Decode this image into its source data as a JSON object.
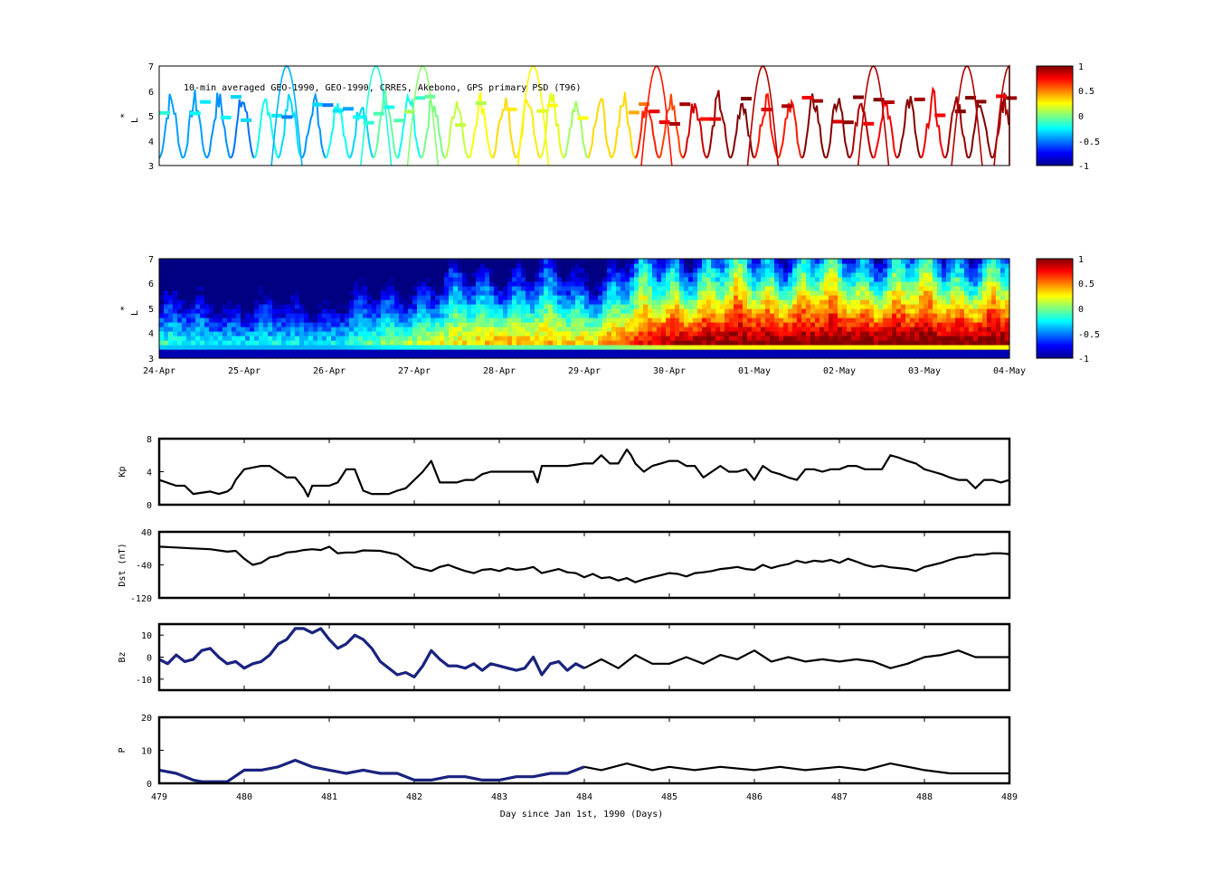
{
  "figure": {
    "top_title": "10-min averaged GEO-1990, GEO-1990, CRRES, Akebono, GPS  primary PSD (T96)",
    "panel1": {
      "ylabel": "L",
      "ylabel_sup": "*",
      "ylim": [
        3,
        7
      ],
      "yticks": [
        "3",
        "4",
        "5",
        "6",
        "7"
      ]
    },
    "panel2": {
      "ylabel": "L",
      "ylabel_sup": "*",
      "ylim": [
        3,
        7
      ],
      "yticks": [
        "3",
        "4",
        "5",
        "6",
        "7"
      ],
      "date_ticks": [
        "24-Apr",
        "25-Apr",
        "26-Apr",
        "27-Apr",
        "28-Apr",
        "29-Apr",
        "30-Apr",
        "01-May",
        "02-May",
        "03-May",
        "04-May"
      ]
    },
    "colorbar1": {
      "ticks": [
        "1",
        "0.5",
        "0",
        "-0.5",
        "-1"
      ],
      "range": [
        -1,
        1
      ]
    },
    "colorbar2": {
      "ticks": [
        "1",
        "0.5",
        "0",
        "-0.5",
        "-1"
      ],
      "range": [
        -1,
        1
      ]
    },
    "xlabel": "Day since Jan 1st, 1990 (Days)",
    "day_ticks": [
      "479",
      "480",
      "481",
      "482",
      "483",
      "484",
      "485",
      "486",
      "487",
      "488",
      "489"
    ]
  },
  "chart_data": [
    {
      "type": "scatter",
      "title": "10-min averaged GEO-1990, GEO-1990, CRRES, Akebono, GPS  primary PSD (T96)",
      "xlabel": "",
      "ylabel": "L*",
      "xlim": [
        479,
        489
      ],
      "ylim": [
        3,
        7
      ],
      "colormap": "jet",
      "color_range": [
        -1,
        1
      ],
      "description_series": [
        {
          "name": "orbit tracks (colored by normalized PSD)",
          "trend": [
            {
              "x": 479.0,
              "c": -0.3
            },
            {
              "x": 480.0,
              "c": -0.4
            },
            {
              "x": 481.0,
              "c": -0.4
            },
            {
              "x": 482.0,
              "c": 0.0
            },
            {
              "x": 483.0,
              "c": 0.3
            },
            {
              "x": 484.0,
              "c": 0.2
            },
            {
              "x": 485.0,
              "c": 0.8
            },
            {
              "x": 486.0,
              "c": 0.9
            },
            {
              "x": 487.0,
              "c": 0.9
            },
            {
              "x": 488.0,
              "c": 0.9
            },
            {
              "x": 489.0,
              "c": 0.9
            }
          ]
        }
      ]
    },
    {
      "type": "heatmap",
      "xlabel": "",
      "ylabel": "L*",
      "xlim": [
        479,
        489
      ],
      "ylim": [
        3,
        7
      ],
      "colormap": "jet",
      "color_range": [
        -1,
        1
      ],
      "x_tick_labels": [
        "24-Apr",
        "25-Apr",
        "26-Apr",
        "27-Apr",
        "28-Apr",
        "29-Apr",
        "30-Apr",
        "01-May",
        "02-May",
        "03-May",
        "04-May"
      ]
    },
    {
      "type": "line",
      "ylabel": "Kp",
      "xlim": [
        479,
        489
      ],
      "ylim": [
        0,
        8
      ],
      "yticks": [
        "0",
        "4",
        "8"
      ],
      "series": [
        {
          "color": "#000000",
          "x": [
            479.0,
            479.2,
            479.3,
            479.4,
            479.6,
            479.7,
            479.8,
            479.85,
            479.9,
            480.0,
            480.2,
            480.3,
            480.5,
            480.6,
            480.7,
            480.75,
            480.8,
            481.0,
            481.1,
            481.2,
            481.3,
            481.35,
            481.4,
            481.5,
            481.7,
            481.8,
            481.9,
            482.0,
            482.1,
            482.2,
            482.3,
            482.5,
            482.6,
            482.7,
            482.8,
            482.9,
            483.0,
            483.1,
            483.2,
            483.3,
            483.4,
            483.45,
            483.5,
            483.6,
            483.8,
            484.0,
            484.1,
            484.2,
            484.3,
            484.4,
            484.5,
            484.55,
            484.6,
            484.7,
            484.8,
            484.9,
            485.0,
            485.1,
            485.2,
            485.3,
            485.4,
            485.5,
            485.6,
            485.7,
            485.8,
            485.9,
            486.0,
            486.1,
            486.2,
            486.3,
            486.4,
            486.5,
            486.6,
            486.7,
            486.8,
            486.9,
            487.0,
            487.1,
            487.2,
            487.3,
            487.4,
            487.5,
            487.6,
            487.7,
            487.8,
            487.9,
            488.0,
            488.1,
            488.2,
            488.3,
            488.4,
            488.5,
            488.6,
            488.7,
            488.8,
            488.9,
            489.0
          ],
          "values": [
            3.0,
            2.3,
            2.3,
            1.3,
            1.6,
            1.3,
            1.6,
            2.0,
            3.0,
            4.3,
            4.7,
            4.7,
            3.3,
            3.3,
            2.0,
            1.0,
            2.3,
            2.3,
            2.7,
            4.3,
            4.3,
            3.0,
            1.7,
            1.3,
            1.3,
            1.7,
            2.0,
            3.0,
            4.0,
            5.3,
            2.7,
            2.7,
            3.0,
            3.0,
            3.7,
            4.0,
            4.0,
            4.0,
            4.0,
            4.0,
            4.0,
            2.7,
            4.7,
            4.7,
            4.7,
            5.0,
            5.0,
            6.0,
            5.0,
            5.0,
            6.7,
            6.0,
            5.0,
            4.0,
            4.7,
            5.0,
            5.3,
            5.3,
            4.7,
            4.7,
            3.3,
            4.0,
            4.7,
            4.0,
            4.0,
            4.3,
            3.0,
            4.7,
            4.0,
            3.7,
            3.3,
            3.0,
            4.3,
            4.3,
            4.0,
            4.3,
            4.3,
            4.7,
            4.7,
            4.3,
            4.3,
            4.3,
            6.0,
            5.7,
            5.3,
            5.0,
            4.3,
            4.0,
            3.7,
            3.3,
            3.0,
            3.0,
            2.0,
            3.0,
            3.0,
            2.7,
            3.0
          ]
        }
      ]
    },
    {
      "type": "line",
      "ylabel": "Dst (nT)",
      "xlim": [
        479,
        489
      ],
      "ylim": [
        -120,
        40
      ],
      "yticks": [
        "-120",
        "-40",
        "40"
      ],
      "series": [
        {
          "color": "#000000",
          "x": [
            479.0,
            479.2,
            479.4,
            479.6,
            479.8,
            479.9,
            480.0,
            480.1,
            480.2,
            480.3,
            480.4,
            480.5,
            480.6,
            480.7,
            480.8,
            480.9,
            481.0,
            481.1,
            481.2,
            481.3,
            481.4,
            481.6,
            481.8,
            481.9,
            482.0,
            482.1,
            482.2,
            482.3,
            482.4,
            482.5,
            482.6,
            482.7,
            482.8,
            482.9,
            483.0,
            483.1,
            483.2,
            483.3,
            483.4,
            483.5,
            483.6,
            483.7,
            483.8,
            483.9,
            484.0,
            484.1,
            484.2,
            484.3,
            484.4,
            484.5,
            484.6,
            484.7,
            484.8,
            484.9,
            485.0,
            485.1,
            485.2,
            485.3,
            485.4,
            485.5,
            485.6,
            485.7,
            485.8,
            485.9,
            486.0,
            486.1,
            486.2,
            486.3,
            486.4,
            486.5,
            486.6,
            486.7,
            486.8,
            486.9,
            487.0,
            487.1,
            487.2,
            487.3,
            487.4,
            487.5,
            487.6,
            487.7,
            487.8,
            487.9,
            488.0,
            488.1,
            488.2,
            488.3,
            488.4,
            488.5,
            488.6,
            488.7,
            488.8,
            488.9,
            489.0
          ],
          "values": [
            4,
            2,
            0,
            -2,
            -8,
            -6,
            -25,
            -40,
            -35,
            -22,
            -18,
            -10,
            -8,
            -4,
            -2,
            -4,
            4,
            -12,
            -10,
            -10,
            -5,
            -6,
            -15,
            -30,
            -45,
            -50,
            -55,
            -45,
            -40,
            -48,
            -55,
            -60,
            -52,
            -50,
            -55,
            -48,
            -52,
            -50,
            -45,
            -60,
            -55,
            -50,
            -58,
            -60,
            -70,
            -62,
            -72,
            -70,
            -78,
            -72,
            -82,
            -75,
            -70,
            -65,
            -60,
            -62,
            -68,
            -60,
            -58,
            -55,
            -50,
            -48,
            -45,
            -50,
            -52,
            -40,
            -48,
            -42,
            -38,
            -30,
            -35,
            -30,
            -32,
            -28,
            -35,
            -25,
            -32,
            -40,
            -45,
            -42,
            -46,
            -48,
            -50,
            -55,
            -45,
            -40,
            -35,
            -28,
            -22,
            -20,
            -15,
            -15,
            -12,
            -12,
            -14
          ]
        }
      ]
    },
    {
      "type": "line",
      "ylabel": "Bz",
      "xlim": [
        479,
        489
      ],
      "ylim": [
        -15,
        15
      ],
      "yticks": [
        "-10",
        "0",
        "10"
      ],
      "series": [
        {
          "color": "#1a237e",
          "x": [
            479.0,
            479.1,
            479.2,
            479.3,
            479.4,
            479.5,
            479.6,
            479.7,
            479.8,
            479.9,
            480.0,
            480.1,
            480.2,
            480.3,
            480.4,
            480.5,
            480.6,
            480.7,
            480.8,
            480.9,
            481.0,
            481.1,
            481.2,
            481.3,
            481.4,
            481.5,
            481.6,
            481.7,
            481.8,
            481.9,
            482.0,
            482.1,
            482.2,
            482.3,
            482.4,
            482.5,
            482.6,
            482.7,
            482.8,
            482.9,
            483.0,
            483.1,
            483.2,
            483.3,
            483.4,
            483.5,
            483.6,
            483.7,
            483.8,
            483.9,
            484.0
          ],
          "values": [
            -1,
            -3,
            1,
            -2,
            -1,
            3,
            4,
            0,
            -3,
            -2,
            -5,
            -3,
            -2,
            1,
            6,
            8,
            13,
            13,
            11,
            13,
            8,
            4,
            6,
            10,
            8,
            4,
            -2,
            -5,
            -8,
            -7,
            -9,
            -4,
            3,
            -1,
            -4,
            -4,
            -5,
            -3,
            -6,
            -3,
            -4,
            -5,
            -6,
            -5,
            0,
            -8,
            -3,
            -2,
            -6,
            -3,
            -5
          ]
        },
        {
          "color": "#000000",
          "x": [
            484.0,
            484.2,
            484.4,
            484.6,
            484.8,
            485.0,
            485.2,
            485.4,
            485.6,
            485.8,
            486.0,
            486.2,
            486.4,
            486.6,
            486.8,
            487.0,
            487.2,
            487.4,
            487.6,
            487.8,
            488.0,
            488.2,
            488.4,
            488.6,
            488.8,
            489.0
          ],
          "values": [
            -5,
            -1,
            -5,
            1,
            -3,
            -3,
            0,
            -3,
            1,
            -1,
            3,
            -2,
            0,
            -2,
            -1,
            -2,
            -1,
            -2,
            -5,
            -3,
            0,
            1,
            3,
            0,
            0,
            0
          ]
        }
      ]
    },
    {
      "type": "line",
      "ylabel": "P",
      "xlabel": "Day since Jan 1st, 1990 (Days)",
      "xlim": [
        479,
        489
      ],
      "ylim": [
        0,
        20
      ],
      "yticks": [
        "0",
        "10",
        "20"
      ],
      "series": [
        {
          "color": "#1a237e",
          "x": [
            479.0,
            479.2,
            479.4,
            479.5,
            479.6,
            479.8,
            480.0,
            480.2,
            480.4,
            480.6,
            480.7,
            480.8,
            481.0,
            481.2,
            481.4,
            481.6,
            481.8,
            482.0,
            482.2,
            482.4,
            482.6,
            482.8,
            483.0,
            483.2,
            483.4,
            483.6,
            483.8,
            484.0
          ],
          "values": [
            4,
            3,
            1,
            0.5,
            0.5,
            0.5,
            4,
            4,
            5,
            7,
            6,
            5,
            4,
            3,
            4,
            3,
            3,
            1,
            1,
            2,
            2,
            1,
            1,
            2,
            2,
            3,
            3,
            5
          ]
        },
        {
          "color": "#000000",
          "x": [
            484.0,
            484.2,
            484.5,
            484.8,
            485.0,
            485.3,
            485.6,
            486.0,
            486.3,
            486.6,
            487.0,
            487.3,
            487.6,
            488.0,
            488.3,
            488.6,
            489.0
          ],
          "values": [
            5,
            4,
            6,
            4,
            5,
            4,
            5,
            4,
            5,
            4,
            5,
            4,
            6,
            4,
            3,
            3,
            3
          ]
        }
      ]
    }
  ]
}
